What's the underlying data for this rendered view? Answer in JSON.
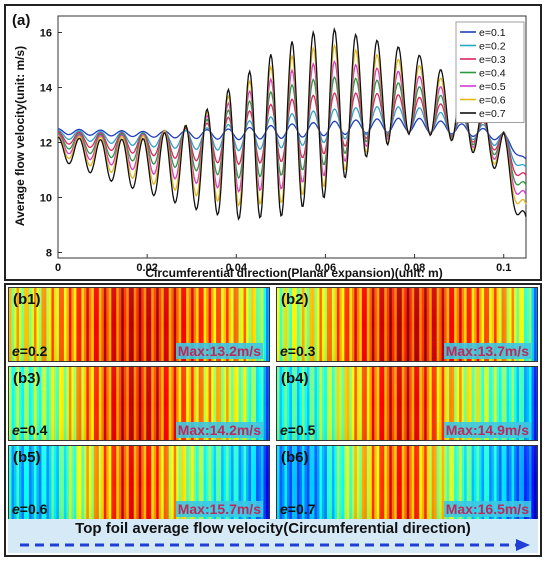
{
  "chart_data": {
    "type": "line",
    "panel_label": "(a)",
    "xlabel": "Circumferential direction(Planar expansion)(unit: m)",
    "ylabel": "Average flow velocity(unit: m/s)",
    "xlim": [
      0,
      0.105
    ],
    "ylim": [
      7.8,
      16.6
    ],
    "x_ticks": [
      0,
      0.02,
      0.04,
      0.06,
      0.08,
      0.1
    ],
    "x_tick_labels": [
      "0",
      "0.02",
      "0.04",
      "0.06",
      "0.08",
      "0.1"
    ],
    "y_ticks": [
      8,
      10,
      12,
      14,
      16
    ],
    "y_tick_labels": [
      "8",
      "10",
      "12",
      "14",
      "16"
    ],
    "grid": false,
    "legend_position": "top-right",
    "oscillation_cycles": 22,
    "series": [
      {
        "name": "e=0.1",
        "color": "#1f3fbf",
        "x": [
          0,
          0.01,
          0.02,
          0.03,
          0.04,
          0.05,
          0.06,
          0.07,
          0.08,
          0.09,
          0.1,
          0.105
        ],
        "mean": [
          12.4,
          12.35,
          12.3,
          12.3,
          12.3,
          12.4,
          12.5,
          12.6,
          12.65,
          12.5,
          12.2,
          11.3
        ],
        "amplitude": [
          0.1,
          0.1,
          0.1,
          0.15,
          0.2,
          0.25,
          0.25,
          0.25,
          0.25,
          0.2,
          0.15,
          0.1
        ]
      },
      {
        "name": "e=0.2",
        "color": "#2aa6c8",
        "x": [
          0,
          0.01,
          0.02,
          0.03,
          0.04,
          0.05,
          0.06,
          0.07,
          0.08,
          0.09,
          0.1,
          0.105
        ],
        "mean": [
          12.3,
          12.2,
          12.1,
          12.1,
          12.2,
          12.4,
          12.6,
          12.8,
          12.85,
          12.6,
          12.1,
          10.9
        ],
        "amplitude": [
          0.15,
          0.2,
          0.25,
          0.35,
          0.5,
          0.6,
          0.6,
          0.5,
          0.45,
          0.35,
          0.3,
          0.2
        ]
      },
      {
        "name": "e=0.3",
        "color": "#e0245e",
        "x": [
          0,
          0.01,
          0.02,
          0.03,
          0.04,
          0.05,
          0.06,
          0.07,
          0.08,
          0.09,
          0.1,
          0.105
        ],
        "mean": [
          12.2,
          12.05,
          11.95,
          11.95,
          12.1,
          12.4,
          12.7,
          13.0,
          13.05,
          12.7,
          12.0,
          10.5
        ],
        "amplitude": [
          0.2,
          0.3,
          0.4,
          0.6,
          0.9,
          1.1,
          1.1,
          0.8,
          0.65,
          0.5,
          0.4,
          0.3
        ]
      },
      {
        "name": "e=0.4",
        "color": "#2a9a3e",
        "x": [
          0,
          0.01,
          0.02,
          0.03,
          0.04,
          0.05,
          0.06,
          0.07,
          0.08,
          0.09,
          0.1,
          0.105
        ],
        "mean": [
          12.1,
          11.9,
          11.8,
          11.8,
          12.0,
          12.4,
          12.8,
          13.2,
          13.25,
          12.8,
          11.9,
          10.1
        ],
        "amplitude": [
          0.25,
          0.4,
          0.55,
          0.8,
          1.3,
          1.6,
          1.6,
          1.1,
          0.85,
          0.65,
          0.5,
          0.35
        ]
      },
      {
        "name": "e=0.5",
        "color": "#d43ad4",
        "x": [
          0,
          0.01,
          0.02,
          0.03,
          0.04,
          0.05,
          0.06,
          0.07,
          0.08,
          0.09,
          0.1,
          0.105
        ],
        "mean": [
          12.0,
          11.75,
          11.6,
          11.6,
          11.9,
          12.4,
          12.9,
          13.35,
          13.45,
          12.9,
          11.8,
          9.7
        ],
        "amplitude": [
          0.3,
          0.5,
          0.7,
          1.05,
          1.7,
          2.1,
          2.1,
          1.4,
          1.05,
          0.8,
          0.6,
          0.4
        ]
      },
      {
        "name": "e=0.6",
        "color": "#e3b81c",
        "x": [
          0,
          0.01,
          0.02,
          0.03,
          0.04,
          0.05,
          0.06,
          0.07,
          0.08,
          0.09,
          0.1,
          0.105
        ],
        "mean": [
          11.9,
          11.6,
          11.4,
          11.4,
          11.8,
          12.4,
          13.0,
          13.5,
          13.65,
          13.0,
          11.7,
          9.3
        ],
        "amplitude": [
          0.35,
          0.6,
          0.85,
          1.3,
          2.1,
          2.6,
          2.6,
          1.75,
          1.25,
          0.95,
          0.7,
          0.45
        ]
      },
      {
        "name": "e=0.7",
        "color": "#111111",
        "x": [
          0,
          0.01,
          0.02,
          0.03,
          0.04,
          0.05,
          0.06,
          0.07,
          0.08,
          0.09,
          0.1,
          0.105
        ],
        "mean": [
          11.8,
          11.4,
          11.15,
          11.15,
          11.7,
          12.4,
          13.1,
          13.7,
          13.85,
          13.1,
          11.6,
          8.8
        ],
        "amplitude": [
          0.4,
          0.7,
          1.0,
          1.55,
          2.5,
          3.1,
          3.1,
          2.1,
          1.45,
          1.1,
          0.8,
          0.5
        ]
      }
    ]
  },
  "heatmaps": [
    {
      "label": "(b1)",
      "e_symbol": "e",
      "e_value": "=0.2",
      "max_text": "Max:13.2m/s",
      "max_value": 13.2,
      "stripes": 30,
      "intensity": [
        0.62,
        0.6,
        0.62,
        0.66,
        0.7,
        0.74,
        0.78,
        0.8,
        0.82,
        0.85,
        0.87,
        0.86,
        0.84,
        0.82,
        0.8,
        0.78,
        0.75,
        0.72,
        0.7,
        0.65,
        0.55,
        0.25
      ]
    },
    {
      "label": "(b2)",
      "e_symbol": "e",
      "e_value": "=0.3",
      "max_text": "Max:13.7m/s",
      "max_value": 13.7,
      "stripes": 30,
      "intensity": [
        0.55,
        0.55,
        0.58,
        0.62,
        0.67,
        0.72,
        0.77,
        0.8,
        0.83,
        0.86,
        0.88,
        0.87,
        0.85,
        0.83,
        0.8,
        0.78,
        0.75,
        0.72,
        0.68,
        0.62,
        0.5,
        0.2
      ]
    },
    {
      "label": "(b3)",
      "e_symbol": "e",
      "e_value": "=0.4",
      "max_text": "Max:14.2m/s",
      "max_value": 14.2,
      "stripes": 30,
      "intensity": [
        0.48,
        0.46,
        0.47,
        0.5,
        0.55,
        0.62,
        0.7,
        0.76,
        0.8,
        0.84,
        0.86,
        0.85,
        0.82,
        0.78,
        0.74,
        0.7,
        0.66,
        0.62,
        0.58,
        0.52,
        0.42,
        0.18
      ]
    },
    {
      "label": "(b4)",
      "e_symbol": "e",
      "e_value": "=0.5",
      "max_text": "Max:14.9m/s",
      "max_value": 14.9,
      "stripes": 30,
      "intensity": [
        0.42,
        0.4,
        0.4,
        0.43,
        0.48,
        0.56,
        0.64,
        0.72,
        0.78,
        0.82,
        0.84,
        0.82,
        0.78,
        0.72,
        0.66,
        0.6,
        0.55,
        0.5,
        0.46,
        0.42,
        0.35,
        0.15
      ]
    },
    {
      "label": "(b5)",
      "e_symbol": "e",
      "e_value": "=0.6",
      "max_text": "Max:15.7m/s",
      "max_value": 15.7,
      "stripes": 30,
      "intensity": [
        0.36,
        0.33,
        0.32,
        0.34,
        0.4,
        0.48,
        0.58,
        0.66,
        0.74,
        0.8,
        0.82,
        0.8,
        0.74,
        0.66,
        0.58,
        0.5,
        0.44,
        0.4,
        0.36,
        0.33,
        0.28,
        0.12
      ]
    },
    {
      "label": "(b6)",
      "e_symbol": "e",
      "e_value": "=0.7",
      "max_text": "Max:16.5m/s",
      "max_value": 16.5,
      "stripes": 30,
      "intensity": [
        0.3,
        0.27,
        0.26,
        0.28,
        0.34,
        0.44,
        0.55,
        0.64,
        0.72,
        0.78,
        0.8,
        0.78,
        0.7,
        0.6,
        0.52,
        0.44,
        0.38,
        0.34,
        0.3,
        0.27,
        0.22,
        0.1
      ]
    }
  ],
  "footer": {
    "title": "Top foil average flow velocity(Circumferential direction)",
    "arrow_color": "#1f3fd6"
  },
  "colors": {
    "legend_border": "#888888",
    "heatmap_max_text": "#c0275b",
    "heatmap_max_bg": "#3cc8e6"
  }
}
